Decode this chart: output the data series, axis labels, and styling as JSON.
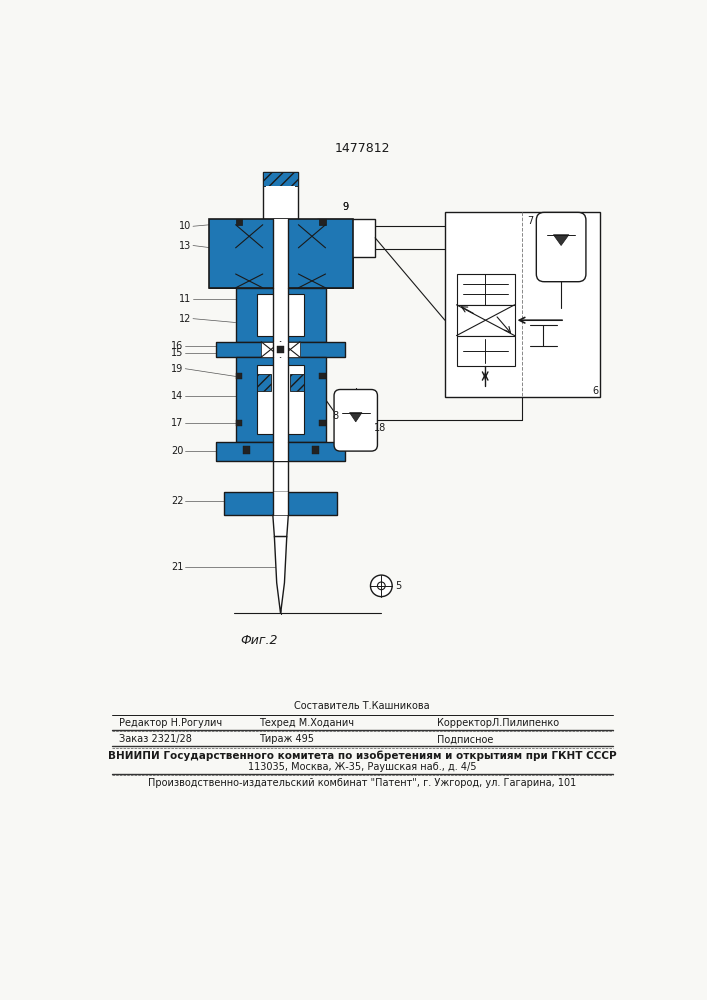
{
  "patent_number": "1477812",
  "figure_label": "Фиг.2",
  "bg_color": "#f8f8f5",
  "line_color": "#1a1a1a",
  "footer": {
    "line1_center": "Составитель Т.Кашникова",
    "line2_col1": "Редактор Н.Рогулич",
    "line2_col2": "Техред М.Ходанич",
    "line2_col3": "КорректорЛ.Пилипенко",
    "line3_col1": "Заказ 2321/28",
    "line3_col2": "Тираж 495",
    "line3_col3": "Подписное",
    "line4": "ВНИИПИ Государственного комитета по изобретениям и открытиям при ГКНТ СССР",
    "line5": "113035, Москва, Ж-35, Раушская наб., д. 4/5",
    "line6": "Производственно-издательский комбинат \"Патент\", г. Ужгород, ул. Гагарина, 101"
  }
}
